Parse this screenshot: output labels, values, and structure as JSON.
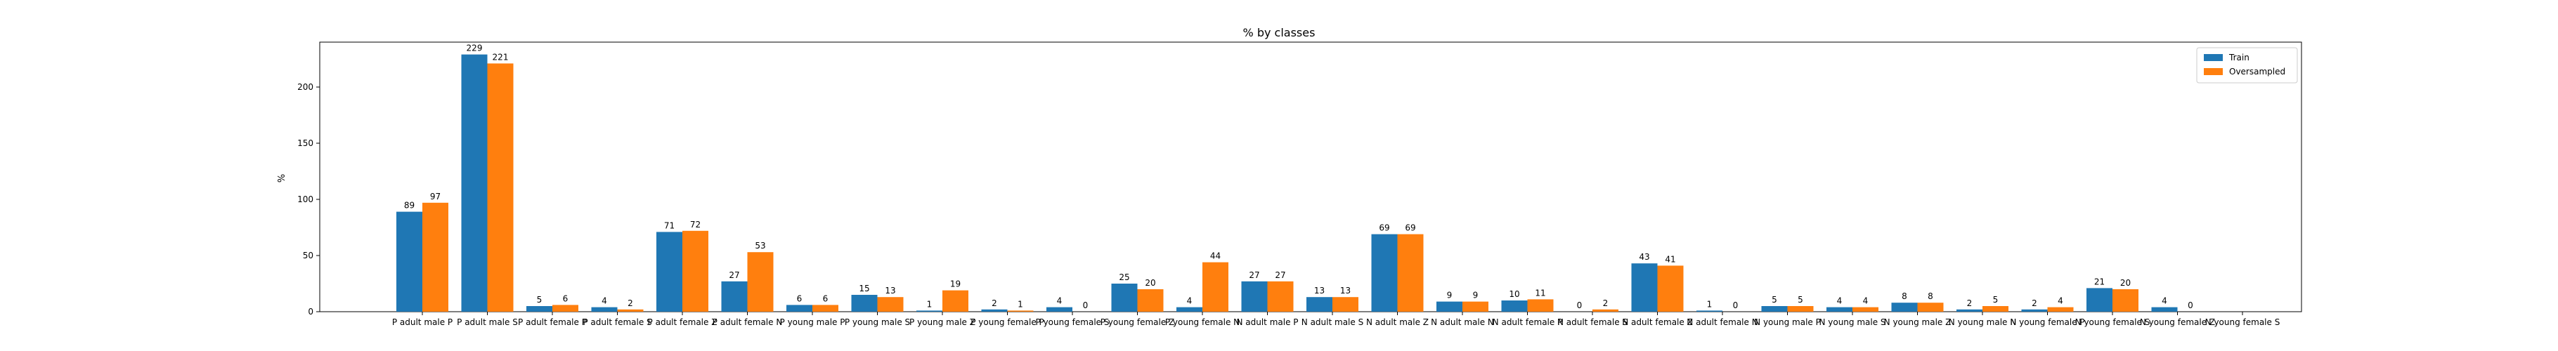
{
  "chart_data": {
    "type": "bar",
    "title": "% by classes",
    "xlabel": "",
    "ylabel": "%",
    "ylim": [
      0,
      240
    ],
    "yticks": [
      0,
      50,
      100,
      150,
      200
    ],
    "grid": false,
    "legend_position": "top-right",
    "categories": [
      "P adult male P",
      "P adult male S",
      "P adult female P",
      "P adult female S",
      "P adult female Z",
      "P adult female N",
      "P young male P",
      "P young male S",
      "P young male Z",
      "P young female P",
      "P young female S",
      "P young female Z",
      "P young female N",
      "N adult male P",
      "N adult male S",
      "N adult male Z",
      "N adult male N",
      "N adult female P",
      "N adult female S",
      "N adult female Z",
      "N adult female N",
      "N young male P",
      "N young male S",
      "N young male Z",
      "N young male N",
      "N young female P",
      "N young female S",
      "N young female Z",
      "N young female S"
    ],
    "series": [
      {
        "name": "Train",
        "color": "#1f77b4",
        "values": [
          89,
          229,
          5,
          4,
          71,
          27,
          6,
          15,
          1,
          2,
          4,
          25,
          4,
          27,
          13,
          69,
          9,
          10,
          0,
          43,
          1,
          5,
          4,
          8,
          2,
          2,
          21,
          4,
          null
        ]
      },
      {
        "name": "Oversampled",
        "color": "#ff7f0e",
        "values": [
          97,
          221,
          6,
          2,
          72,
          53,
          6,
          13,
          19,
          1,
          0,
          20,
          44,
          27,
          13,
          69,
          9,
          11,
          2,
          41,
          0,
          5,
          4,
          8,
          5,
          4,
          20,
          0,
          null
        ]
      }
    ]
  }
}
